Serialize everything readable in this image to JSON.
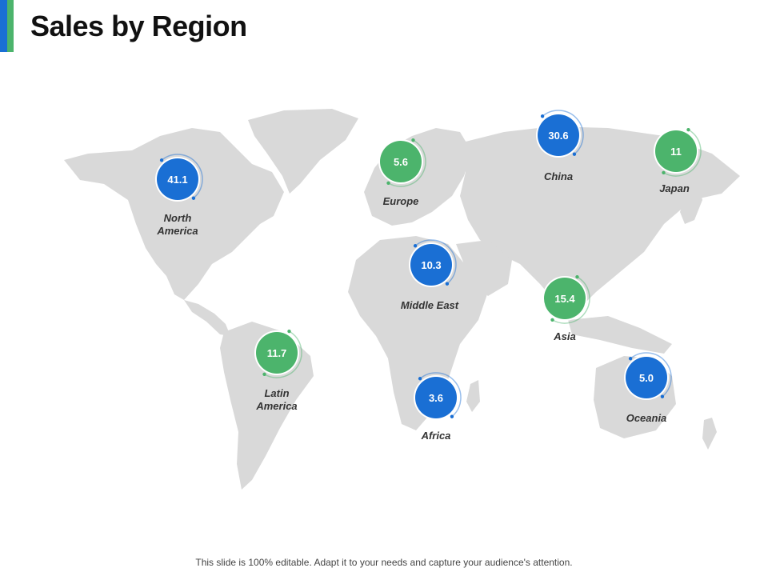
{
  "slide": {
    "title": "Sales by Region",
    "footer": "This slide is 100% editable. Adapt it to your needs and capture your audience's attention."
  },
  "colors": {
    "blue": "#1a6fd4",
    "green": "#4cb46c",
    "land": "#d9d9d9"
  },
  "regions": [
    {
      "name": "North\nAmerica",
      "value": "41.1",
      "color": "blue"
    },
    {
      "name": "Europe",
      "value": "5.6",
      "color": "green"
    },
    {
      "name": "China",
      "value": "30.6",
      "color": "blue"
    },
    {
      "name": "Japan",
      "value": "11",
      "color": "green"
    },
    {
      "name": "Middle East",
      "value": "10.3",
      "color": "blue"
    },
    {
      "name": "Asia",
      "value": "15.4",
      "color": "green"
    },
    {
      "name": "Latin\nAmerica",
      "value": "11.7",
      "color": "green"
    },
    {
      "name": "Africa",
      "value": "3.6",
      "color": "blue"
    },
    {
      "name": "Oceania",
      "value": "5.0",
      "color": "blue"
    }
  ]
}
